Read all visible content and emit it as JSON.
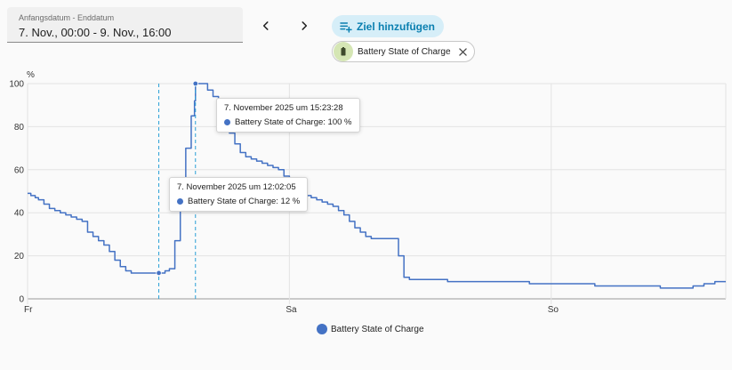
{
  "date_range": {
    "label": "Anfangsdatum - Enddatum",
    "value": "7. Nov., 00:00 - 9. Nov., 16:00"
  },
  "navigation": {
    "prev_icon": "chevron-left-icon",
    "next_icon": "chevron-right-icon"
  },
  "add_target": {
    "label": "Ziel hinzufügen",
    "icon": "playlist-plus-icon"
  },
  "entity_chip": {
    "label": "Battery State of Charge",
    "icon": "battery-icon"
  },
  "colors": {
    "series": "#4472c4",
    "accent": "#0a7fb0",
    "chip_bg": "#d5e6b4"
  },
  "chart_data": {
    "type": "line",
    "ylabel": "%",
    "ylim": [
      0,
      100
    ],
    "y_ticks": [
      "0",
      "20",
      "40",
      "60",
      "80",
      "100"
    ],
    "x_range": [
      0,
      64
    ],
    "x_ticks": [
      {
        "label": "Fr",
        "x": 0
      },
      {
        "label": "Sa",
        "x": 24
      },
      {
        "label": "So",
        "x": 48
      }
    ],
    "grid": true,
    "legend": "bottom-center",
    "series": [
      {
        "name": "Battery State of Charge",
        "x": [
          0,
          0.3,
          0.7,
          1.0,
          1.5,
          2.0,
          2.5,
          3.0,
          3.5,
          4.0,
          4.5,
          5.0,
          5.5,
          6.0,
          6.5,
          7.0,
          7.5,
          8.0,
          8.5,
          9.0,
          9.5,
          10.0,
          10.5,
          11.0,
          11.5,
          12.0,
          12.03,
          12.3,
          12.6,
          13.0,
          13.5,
          14.0,
          14.5,
          15.0,
          15.3,
          15.39,
          15.5,
          16.0,
          16.5,
          17.0,
          17.5,
          18.0,
          18.5,
          19.0,
          19.5,
          20.0,
          20.5,
          21.0,
          21.5,
          22.0,
          22.5,
          23.0,
          23.5,
          24.0,
          24.5,
          25.0,
          25.5,
          26.0,
          26.5,
          27.0,
          27.5,
          28.0,
          28.5,
          29.0,
          29.5,
          30.0,
          30.5,
          31.0,
          31.5,
          32.0,
          32.5,
          33.0,
          33.5,
          34.0,
          34.5,
          35.0,
          35.5,
          36.0,
          36.5,
          37.0,
          38.0,
          38.5,
          39.0,
          40.0,
          41.0,
          42.0,
          43.0,
          44.0,
          46.0,
          48.0,
          49.0,
          50.0,
          52.0,
          54.0,
          56.0,
          57.0,
          58.0,
          59.0,
          60.0,
          61.0,
          62.0,
          63.0,
          64.0
        ],
        "values": [
          49,
          48,
          47,
          46,
          44,
          42,
          41,
          40,
          39,
          38,
          37,
          36,
          31,
          29,
          27,
          25,
          22,
          18,
          15,
          13,
          12,
          12,
          12,
          12,
          12,
          12,
          12,
          12,
          13,
          14,
          27,
          50,
          70,
          85,
          92,
          100,
          100,
          100,
          97,
          94,
          90,
          84,
          77,
          72,
          68,
          66,
          65,
          64,
          63,
          62,
          61,
          60,
          57,
          55,
          52,
          49,
          48,
          47,
          46,
          45,
          44,
          43,
          41,
          39,
          36,
          33,
          31,
          29,
          28,
          28,
          28,
          28,
          28,
          20,
          10,
          9,
          9,
          9,
          9,
          9,
          9,
          8,
          8,
          8,
          8,
          8,
          8,
          8,
          7,
          7,
          7,
          7,
          6,
          6,
          6,
          6,
          5,
          5,
          5,
          6,
          7,
          8,
          8
        ]
      }
    ],
    "annotations": [
      {
        "x": 12.03,
        "y": 12,
        "title": "7. November 2025 um 12:02:05",
        "text": "Battery State of Charge: 12 %"
      },
      {
        "x": 15.39,
        "y": 100,
        "title": "7. November 2025 um 15:23:28",
        "text": "Battery State of Charge: 100 %"
      }
    ]
  }
}
